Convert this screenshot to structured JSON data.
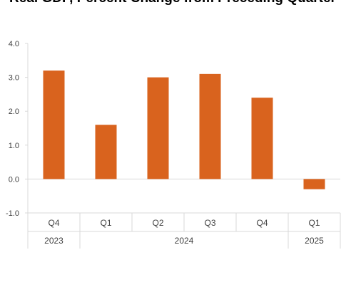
{
  "chart_data": {
    "type": "bar",
    "title": "Real GDP, Percent Change from Preceding Quarter",
    "categories": [
      "Q4",
      "Q1",
      "Q2",
      "Q3",
      "Q4",
      "Q1"
    ],
    "groups": [
      {
        "label": "2023",
        "span": 1
      },
      {
        "label": "2024",
        "span": 4
      },
      {
        "label": "2025",
        "span": 1
      }
    ],
    "series": [
      {
        "values": [
          3.2,
          1.6,
          3.0,
          3.1,
          2.4,
          -0.3
        ]
      }
    ],
    "ylim": [
      -1.0,
      4.0
    ],
    "yticks": [
      "4.0",
      "3.0",
      "2.0",
      "1.0",
      "0.0",
      "-1.0"
    ],
    "ytick_values": [
      4.0,
      3.0,
      2.0,
      1.0,
      0.0,
      -1.0
    ],
    "xlabel": "",
    "ylabel": "",
    "grid": false,
    "legend": "none",
    "bar_color": "#D9631E"
  }
}
